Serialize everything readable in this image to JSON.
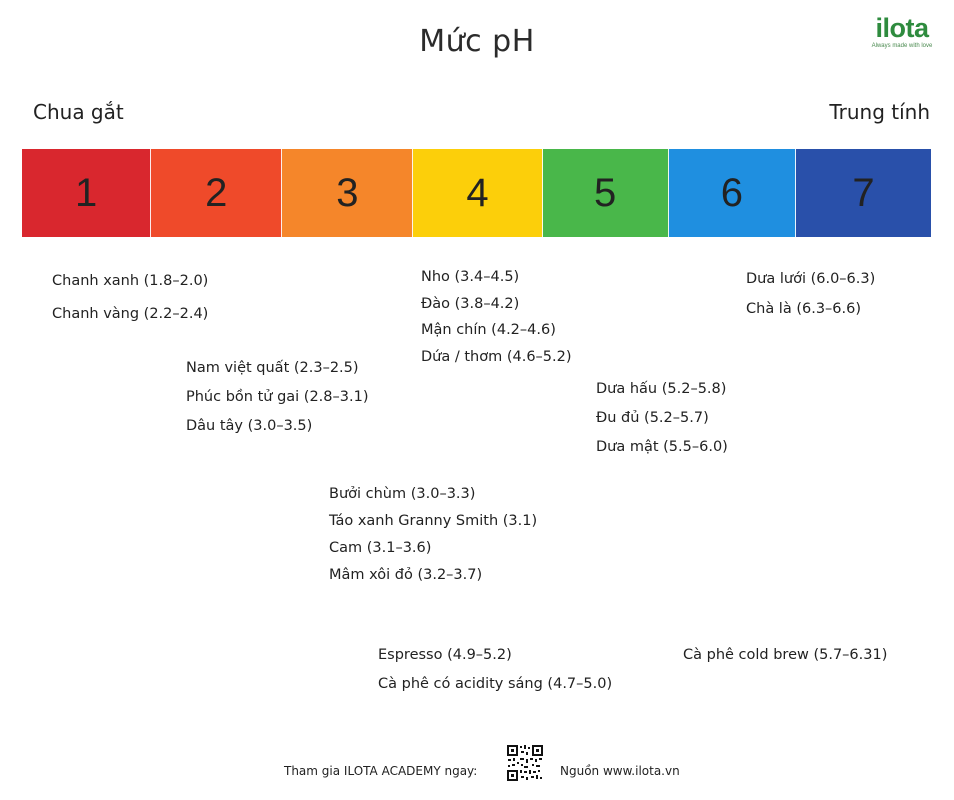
{
  "title": "Mức pH",
  "logo": {
    "text": "ilota",
    "tagline": "Always made with love",
    "color": "#2e8b3e"
  },
  "ends": {
    "left": "Chua gắt",
    "right": "Trung tính"
  },
  "scale": [
    {
      "label": "1",
      "color": "#d9272e"
    },
    {
      "label": "2",
      "color": "#ef4a2a"
    },
    {
      "label": "3",
      "color": "#f5862a"
    },
    {
      "label": "4",
      "color": "#fccf0a"
    },
    {
      "label": "5",
      "color": "#49b74a"
    },
    {
      "label": "6",
      "color": "#1f8fe0"
    },
    {
      "label": "7",
      "color": "#2950aa"
    }
  ],
  "groups": [
    {
      "items": [
        "Chanh xanh (1.8–2.0)",
        "Chanh vàng (2.2–2.4)"
      ]
    },
    {
      "items": [
        "Nam việt quất (2.3–2.5)",
        "Phúc bồn tử gai (2.8–3.1)",
        "Dâu tây (3.0–3.5)"
      ]
    },
    {
      "items": [
        "Bưởi chùm (3.0–3.3)",
        "Táo xanh Granny Smith (3.1)",
        "Cam (3.1–3.6)",
        "Mâm xôi đỏ (3.2–3.7)"
      ]
    },
    {
      "items": [
        "Nho (3.4–4.5)",
        "Đào (3.8–4.2)",
        "Mận chín (4.2–4.6)",
        "Dứa / thơm (4.6–5.2)"
      ]
    },
    {
      "items": [
        "Dưa hấu (5.2–5.8)",
        "Đu đủ (5.2–5.7)",
        "Dưa mật (5.5–6.0)"
      ]
    },
    {
      "items": [
        "Dưa lưới (6.0–6.3)",
        "Chà là (6.3–6.6)"
      ]
    },
    {
      "items": [
        "Espresso (4.9–5.2)",
        "Cà phê có acidity sáng (4.7–5.0)"
      ]
    },
    {
      "items": [
        "Cà phê cold brew (5.7–6.31)"
      ]
    }
  ],
  "footer": {
    "join_text": "Tham gia ILOTA ACADEMY ngay:",
    "source_text": "Nguồn www.ilota.vn"
  }
}
